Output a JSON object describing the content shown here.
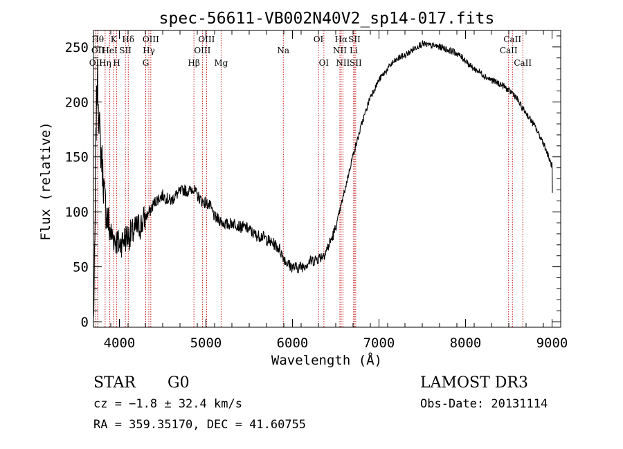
{
  "chart_data": {
    "type": "line",
    "title": "spec-56611-VB002N40V2_sp14-017.fits",
    "xlabel": "Wavelength (Å)",
    "ylabel": "Flux (relative)",
    "xlim": [
      3700,
      9100
    ],
    "ylim": [
      -5,
      265
    ],
    "xticks": [
      4000,
      5000,
      6000,
      7000,
      8000,
      9000
    ],
    "yticks": [
      0,
      50,
      100,
      150,
      200,
      250
    ],
    "series": [
      {
        "name": "flux",
        "x": [
          3700,
          3715,
          3730,
          3745,
          3760,
          3780,
          3800,
          3830,
          3860,
          3900,
          3950,
          4000,
          4050,
          4100,
          4150,
          4200,
          4250,
          4300,
          4350,
          4400,
          4450,
          4500,
          4550,
          4600,
          4650,
          4700,
          4750,
          4800,
          4850,
          4900,
          4950,
          5000,
          5050,
          5100,
          5150,
          5200,
          5250,
          5300,
          5350,
          5400,
          5450,
          5500,
          5550,
          5600,
          5650,
          5700,
          5750,
          5800,
          5850,
          5900,
          5950,
          6000,
          6050,
          6100,
          6150,
          6200,
          6250,
          6300,
          6350,
          6400,
          6450,
          6500,
          6550,
          6600,
          6650,
          6700,
          6750,
          6800,
          6850,
          6900,
          6950,
          7000,
          7050,
          7100,
          7150,
          7200,
          7250,
          7300,
          7350,
          7400,
          7450,
          7500,
          7550,
          7600,
          7650,
          7700,
          7750,
          7800,
          7850,
          7900,
          7950,
          8000,
          8050,
          8100,
          8150,
          8200,
          8250,
          8300,
          8350,
          8400,
          8450,
          8500,
          8550,
          8600,
          8650,
          8700,
          8750,
          8800,
          8850,
          8900,
          8950,
          8980,
          9000,
          9005
        ],
        "y": [
          0,
          60,
          175,
          225,
          195,
          160,
          145,
          110,
          95,
          80,
          75,
          70,
          75,
          78,
          80,
          85,
          88,
          95,
          100,
          108,
          112,
          115,
          112,
          110,
          115,
          118,
          120,
          118,
          122,
          115,
          110,
          108,
          105,
          95,
          93,
          90,
          88,
          90,
          89,
          86,
          86,
          84,
          80,
          78,
          78,
          75,
          72,
          70,
          66,
          58,
          52,
          50,
          49,
          50,
          52,
          55,
          56,
          58,
          60,
          66,
          75,
          85,
          102,
          118,
          135,
          152,
          165,
          180,
          192,
          205,
          212,
          220,
          225,
          230,
          235,
          238,
          241,
          242,
          245,
          248,
          251,
          253,
          252,
          251,
          251,
          250,
          249,
          247,
          246,
          244,
          241,
          238,
          233,
          230,
          228,
          225,
          222,
          220,
          218,
          216,
          214,
          210,
          208,
          202,
          195,
          190,
          184,
          178,
          170,
          163,
          152,
          145,
          142,
          110
        ]
      }
    ],
    "spectral_lines": [
      {
        "label": "OII",
        "x": 3727,
        "row": 3
      },
      {
        "label": "Hθ",
        "x": 3750,
        "row": 1
      },
      {
        "label": "OII",
        "x": 3752,
        "row": 2
      },
      {
        "label": "Hη",
        "x": 3835,
        "row": 3
      },
      {
        "label": "HeI",
        "x": 3889,
        "row": 2
      },
      {
        "label": "K",
        "x": 3934,
        "row": 1
      },
      {
        "label": "H",
        "x": 3969,
        "row": 3
      },
      {
        "label": "SII",
        "x": 4069,
        "row": 2
      },
      {
        "label": "Hδ",
        "x": 4102,
        "row": 1
      },
      {
        "label": "G",
        "x": 4304,
        "row": 3
      },
      {
        "label": "Hγ",
        "x": 4340,
        "row": 2
      },
      {
        "label": "OIII",
        "x": 4363,
        "row": 1
      },
      {
        "label": "Hβ",
        "x": 4861,
        "row": 3
      },
      {
        "label": "OIII",
        "x": 4959,
        "row": 2
      },
      {
        "label": "OIII",
        "x": 5007,
        "row": 1
      },
      {
        "label": "Mg",
        "x": 5175,
        "row": 3
      },
      {
        "label": "Na",
        "x": 5894,
        "row": 2
      },
      {
        "label": "OI",
        "x": 6300,
        "row": 1
      },
      {
        "label": "OI",
        "x": 6363,
        "row": 3
      },
      {
        "label": "NII",
        "x": 6548,
        "row": 2
      },
      {
        "label": "Hα",
        "x": 6563,
        "row": 1
      },
      {
        "label": "NII",
        "x": 6583,
        "row": 3
      },
      {
        "label": "Li",
        "x": 6707,
        "row": 2
      },
      {
        "label": "SII",
        "x": 6716,
        "row": 1
      },
      {
        "label": "SII",
        "x": 6731,
        "row": 3
      },
      {
        "label": "CaII",
        "x": 8498,
        "row": 2
      },
      {
        "label": "CaII",
        "x": 8542,
        "row": 1
      },
      {
        "label": "CaII",
        "x": 8662,
        "row": 3
      }
    ]
  },
  "footer": {
    "object_class": "STAR",
    "subclass": "G0",
    "survey": "LAMOST DR3",
    "redshift_line": "cz = −1.8 ± 32.4 km/s",
    "obs_date": "Obs-Date: 20131114",
    "coords": "RA = 359.35170, DEC =  41.60755"
  }
}
